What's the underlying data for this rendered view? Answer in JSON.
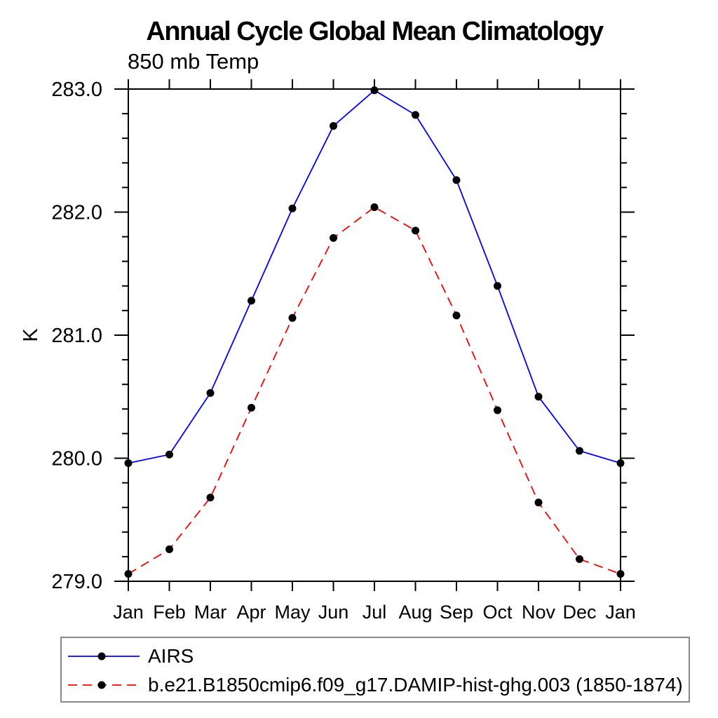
{
  "chart_data": {
    "type": "line",
    "title": "Annual Cycle Global Mean Climatology",
    "subtitle": "850 mb Temp",
    "ylabel": "K",
    "x_categories": [
      "Jan",
      "Feb",
      "Mar",
      "Apr",
      "May",
      "Jun",
      "Jul",
      "Aug",
      "Sep",
      "Oct",
      "Nov",
      "Dec",
      "Jan"
    ],
    "ylim": [
      279.0,
      283.0
    ],
    "ytick_major_labels": [
      "279.0",
      "280.0",
      "281.0",
      "282.0",
      "283.0"
    ],
    "ytick_major_values": [
      279.0,
      280.0,
      281.0,
      282.0,
      283.0
    ],
    "ytick_minor_step": 0.2,
    "grid": false,
    "frame": "box-with-outward-ticks",
    "legend_position": "bottom-left",
    "series": [
      {
        "name": "AIRS",
        "color": "#0000ff",
        "style": "solid",
        "marker": "filled-circle",
        "marker_color": "#000000",
        "values": [
          279.96,
          280.03,
          280.53,
          281.28,
          282.03,
          282.7,
          282.99,
          282.79,
          282.26,
          281.4,
          280.5,
          280.06,
          279.96
        ]
      },
      {
        "name": "b.e21.B1850cmip6.f09_g17.DAMIP-hist-ghg.003 (1850-1874)",
        "color": "#ff0000",
        "style": "dashed",
        "marker": "filled-circle",
        "marker_color": "#000000",
        "values": [
          279.06,
          279.26,
          279.68,
          280.41,
          281.14,
          281.79,
          282.04,
          281.85,
          281.16,
          280.39,
          279.64,
          279.18,
          279.06
        ]
      }
    ]
  },
  "colors": {
    "axis": "#000000",
    "text": "#000000",
    "legend_border": "#888888",
    "background": "#ffffff"
  }
}
